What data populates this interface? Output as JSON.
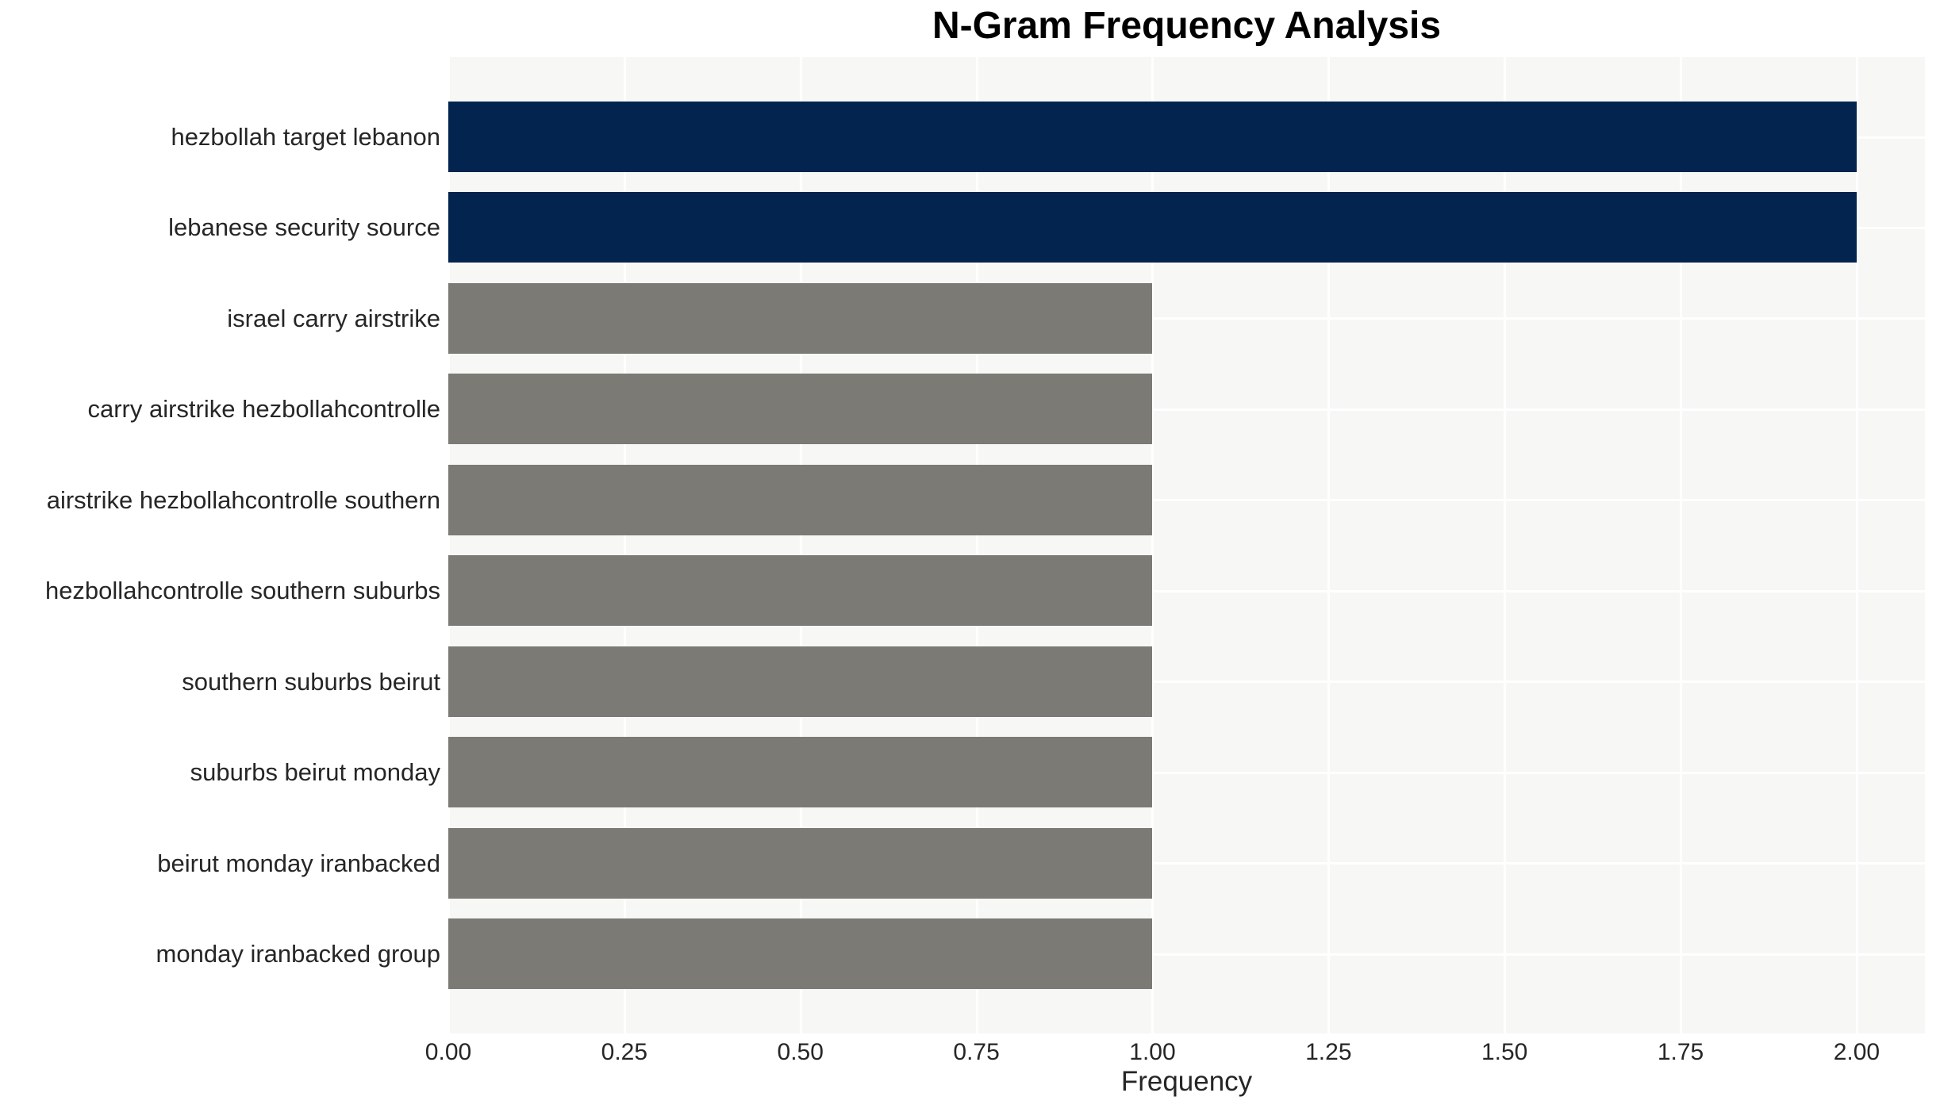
{
  "chart_data": {
    "type": "bar",
    "orientation": "horizontal",
    "title": "N-Gram Frequency Analysis",
    "xlabel": "Frequency",
    "ylabel": "",
    "categories": [
      "hezbollah target lebanon",
      "lebanese security source",
      "israel carry airstrike",
      "carry airstrike hezbollahcontrolle",
      "airstrike hezbollahcontrolle southern",
      "hezbollahcontrolle southern suburbs",
      "southern suburbs beirut",
      "suburbs beirut monday",
      "beirut monday iranbacked",
      "monday iranbacked group"
    ],
    "values": [
      2.0,
      2.0,
      1.0,
      1.0,
      1.0,
      1.0,
      1.0,
      1.0,
      1.0,
      1.0
    ],
    "bar_colors": [
      "#02244e",
      "#02244e",
      "#7c7a75",
      "#7c7a75",
      "#7c7a75",
      "#7c7a75",
      "#7c7a75",
      "#7c7a75",
      "#7c7a75",
      "#7c7a75"
    ],
    "xlim": [
      0,
      2.097
    ],
    "xticks": [
      {
        "value": 0.0,
        "label": "0.00"
      },
      {
        "value": 0.25,
        "label": "0.25"
      },
      {
        "value": 0.5,
        "label": "0.50"
      },
      {
        "value": 0.75,
        "label": "0.75"
      },
      {
        "value": 1.0,
        "label": "1.00"
      },
      {
        "value": 1.25,
        "label": "1.25"
      },
      {
        "value": 1.5,
        "label": "1.50"
      },
      {
        "value": 1.75,
        "label": "1.75"
      },
      {
        "value": 2.0,
        "label": "2.00"
      }
    ],
    "grid": true,
    "legend": "none",
    "colors": {
      "plot_background": "#f7f7f6",
      "gridline": "#ffffff",
      "axis_text": "#262626",
      "title_text": "#000000",
      "figure_background": "#ffffff"
    }
  }
}
